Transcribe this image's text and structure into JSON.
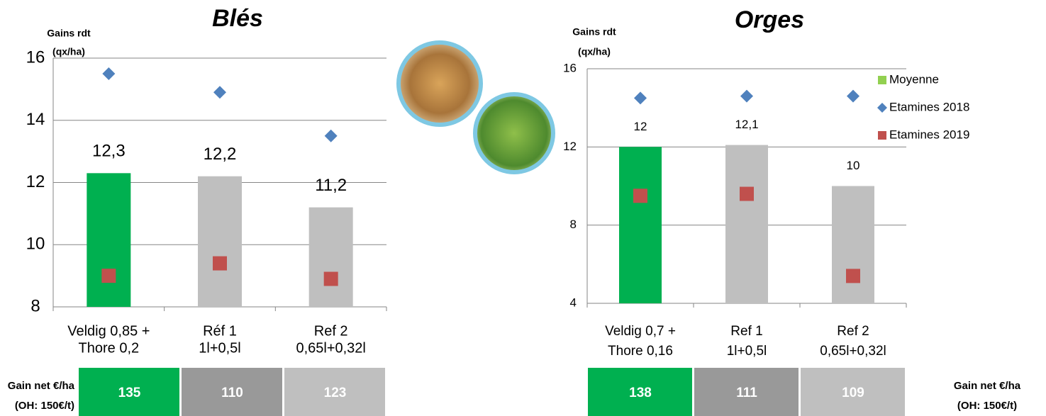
{
  "chart_data": [
    {
      "type": "bar",
      "title": "Blés",
      "y_label": [
        "Gains rdt",
        "(qx/ha)"
      ],
      "categories": [
        [
          "Veldig 0,85 +",
          "Thore 0,2"
        ],
        [
          "Réf 1",
          "1l+0,5l"
        ],
        [
          "Ref 2",
          "0,65l+0,32l"
        ]
      ],
      "ylim": [
        8,
        16
      ],
      "yticks": [
        8,
        10,
        12,
        14,
        16
      ],
      "grid": true,
      "series": [
        {
          "name": "Moyenne",
          "marker": "bar",
          "colors": [
            "#00b050",
            "#bfbfbf",
            "#bfbfbf"
          ],
          "values": [
            12.3,
            12.2,
            11.2
          ],
          "value_labels": [
            "12,3",
            "12,2",
            "11,2"
          ]
        },
        {
          "name": "Etamines 2018",
          "marker": "diamond",
          "color": "#4f81bd",
          "values": [
            15.5,
            14.9,
            13.5
          ]
        },
        {
          "name": "Etamines 2019",
          "marker": "square",
          "color": "#c0504d",
          "values": [
            9.0,
            9.4,
            8.9
          ]
        }
      ],
      "net_gain": {
        "label": [
          "Gain net €/ha",
          "(OH: 150€/t)"
        ],
        "values": [
          135,
          110,
          123
        ],
        "colors": [
          "#00b050",
          "#999999",
          "#bfbfbf"
        ]
      }
    },
    {
      "type": "bar",
      "title": "Orges",
      "y_label": [
        "Gains rdt",
        "(qx/ha)"
      ],
      "categories": [
        [
          "Veldig 0,7 +",
          "Thore 0,16"
        ],
        [
          "Ref 1",
          "1l+0,5l"
        ],
        [
          "Ref 2",
          "0,65l+0,32l"
        ]
      ],
      "ylim": [
        4,
        16
      ],
      "yticks": [
        4,
        8,
        12,
        16
      ],
      "grid": true,
      "legend": "top-right",
      "series": [
        {
          "name": "Moyenne",
          "marker": "bar",
          "color": "#92d050",
          "colors": [
            "#00b050",
            "#bfbfbf",
            "#bfbfbf"
          ],
          "values": [
            12,
            12.1,
            10
          ],
          "value_labels": [
            "12",
            "12,1",
            "10"
          ]
        },
        {
          "name": "Etamines 2018",
          "marker": "diamond",
          "color": "#4f81bd",
          "values": [
            14.5,
            14.6,
            14.6
          ]
        },
        {
          "name": "Etamines 2019",
          "marker": "square",
          "color": "#c0504d",
          "values": [
            9.5,
            9.6,
            5.4
          ]
        }
      ],
      "net_gain": {
        "label": [
          "Gain net €/ha",
          "(OH: 150€/t)"
        ],
        "values": [
          138,
          111,
          109
        ],
        "colors": [
          "#00b050",
          "#999999",
          "#bfbfbf"
        ]
      }
    }
  ]
}
